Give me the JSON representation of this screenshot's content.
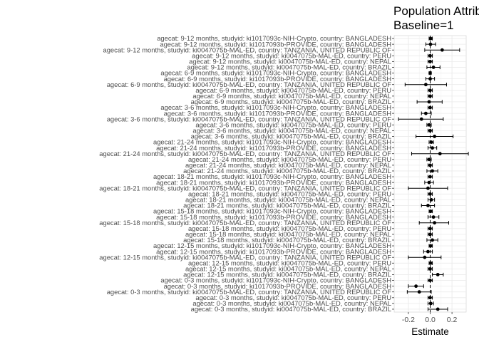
{
  "chart_data": {
    "type": "forest",
    "title": "Population Attributable",
    "subtitle": "Baseline=1",
    "xlabel": "Estimate",
    "ylabel": "",
    "xlim": [
      -0.33,
      0.33
    ],
    "xticks": [
      -0.2,
      0.0,
      0.2
    ],
    "xtick_labels": [
      "-0.2",
      "0.0",
      "0.2"
    ],
    "reference_line": 0,
    "rows": [
      {
        "label": "agecat: 9-12 months, studyid: ki1017093c-NIH-Crypto, country: BANGLADESH",
        "estimate": 0.005,
        "lower": -0.01,
        "upper": 0.02
      },
      {
        "label": "agecat: 9-12 months, studyid: ki1017093b-PROVIDE, country: BANGLADESH",
        "estimate": 0.003,
        "lower": -0.04,
        "upper": 0.05
      },
      {
        "label": "agecat: 9-12 months, studyid: ki0047075b-MAL-ED, country: TANZANIA, UNITED REPUBLIC OF",
        "estimate": 0.11,
        "lower": -0.05,
        "upper": 0.27
      },
      {
        "label": "agecat: 9-12 months, studyid: ki0047075b-MAL-ED, country: PERU",
        "estimate": 0.0,
        "lower": -0.02,
        "upper": 0.02
      },
      {
        "label": "agecat: 9-12 months, studyid: ki0047075b-MAL-ED, country: NEPAL",
        "estimate": 0.0,
        "lower": -0.02,
        "upper": 0.02
      },
      {
        "label": "agecat: 9-12 months, studyid: ki0047075b-MAL-ED, country: BRAZIL",
        "estimate": 0.03,
        "lower": -0.03,
        "upper": 0.09
      },
      {
        "label": "agecat: 6-9 months, studyid: ki1017093c-NIH-Crypto, country: BANGLADESH",
        "estimate": 0.0,
        "lower": -0.01,
        "upper": 0.01
      },
      {
        "label": "agecat: 6-9 months, studyid: ki1017093b-PROVIDE, country: BANGLADESH",
        "estimate": 0.0,
        "lower": -0.04,
        "upper": 0.04
      },
      {
        "label": "agecat: 6-9 months, studyid: ki0047075b-MAL-ED, country: TANZANIA, UNITED REPUBLIC OF",
        "estimate": -0.04,
        "lower": -0.23,
        "upper": 0.15
      },
      {
        "label": "agecat: 6-9 months, studyid: ki0047075b-MAL-ED, country: PERU",
        "estimate": 0.0,
        "lower": -0.02,
        "upper": 0.02
      },
      {
        "label": "agecat: 6-9 months, studyid: ki0047075b-MAL-ED, country: NEPAL",
        "estimate": 0.0,
        "lower": -0.02,
        "upper": 0.02
      },
      {
        "label": "agecat: 6-9 months, studyid: ki0047075b-MAL-ED, country: BRAZIL",
        "estimate": -0.01,
        "lower": -0.12,
        "upper": 0.11
      },
      {
        "label": "agecat: 3-6 months, studyid: ki1017093c-NIH-Crypto, country: BANGLADESH",
        "estimate": 0.0,
        "lower": -0.02,
        "upper": 0.02
      },
      {
        "label": "agecat: 3-6 months, studyid: ki1017093b-PROVIDE, country: BANGLADESH",
        "estimate": -0.04,
        "lower": -0.08,
        "upper": 0.01
      },
      {
        "label": "agecat: 3-6 months, studyid: ki0047075b-MAL-ED, country: TANZANIA, UNITED REPUBLIC OF",
        "estimate": -0.08,
        "lower": -0.29,
        "upper": 0.12
      },
      {
        "label": "agecat: 3-6 months, studyid: ki0047075b-MAL-ED, country: PERU",
        "estimate": -0.01,
        "lower": -0.03,
        "upper": 0.01
      },
      {
        "label": "agecat: 3-6 months, studyid: ki0047075b-MAL-ED, country: NEPAL",
        "estimate": 0.0,
        "lower": -0.02,
        "upper": 0.02
      },
      {
        "label": "agecat: 3-6 months, studyid: ki0047075b-MAL-ED, country: BRAZIL",
        "estimate": 0.04,
        "lower": -0.13,
        "upper": 0.21
      },
      {
        "label": "agecat: 21-24 months, studyid: ki1017093c-NIH-Crypto, country: BANGLADESH",
        "estimate": 0.01,
        "lower": -0.01,
        "upper": 0.03
      },
      {
        "label": "agecat: 21-24 months, studyid: ki1017093b-PROVIDE, country: BANGLADESH",
        "estimate": 0.02,
        "lower": -0.02,
        "upper": 0.06
      },
      {
        "label": "agecat: 21-24 months, studyid: ki0047075b-MAL-ED, country: TANZANIA, UNITED REPUBLIC OF",
        "estimate": 0.09,
        "lower": -0.17,
        "upper": 0.35
      },
      {
        "label": "agecat: 21-24 months, studyid: ki0047075b-MAL-ED, country: PERU",
        "estimate": -0.01,
        "lower": -0.03,
        "upper": 0.01
      },
      {
        "label": "agecat: 21-24 months, studyid: ki0047075b-MAL-ED, country: NEPAL",
        "estimate": 0.0,
        "lower": -0.02,
        "upper": 0.02
      },
      {
        "label": "agecat: 21-24 months, studyid: ki0047075b-MAL-ED, country: BRAZIL",
        "estimate": 0.02,
        "lower": -0.03,
        "upper": 0.07
      },
      {
        "label": "agecat: 18-21 months, studyid: ki1017093c-NIH-Crypto, country: BANGLADESH",
        "estimate": 0.0,
        "lower": -0.02,
        "upper": 0.02
      },
      {
        "label": "agecat: 18-21 months, studyid: ki1017093b-PROVIDE, country: BANGLADESH",
        "estimate": -0.01,
        "lower": -0.05,
        "upper": 0.03
      },
      {
        "label": "agecat: 18-21 months, studyid: ki0047075b-MAL-ED, country: TANZANIA, UNITED REPUBLIC OF",
        "estimate": -0.02,
        "lower": -0.2,
        "upper": 0.16
      },
      {
        "label": "agecat: 18-21 months, studyid: ki0047075b-MAL-ED, country: PERU",
        "estimate": 0.0,
        "lower": -0.02,
        "upper": 0.02
      },
      {
        "label": "agecat: 18-21 months, studyid: ki0047075b-MAL-ED, country: NEPAL",
        "estimate": 0.01,
        "lower": -0.02,
        "upper": 0.04
      },
      {
        "label": "agecat: 18-21 months, studyid: ki0047075b-MAL-ED, country: BRAZIL",
        "estimate": -0.02,
        "lower": -0.08,
        "upper": 0.04
      },
      {
        "label": "agecat: 15-18 months, studyid: ki1017093c-NIH-Crypto, country: BANGLADESH",
        "estimate": 0.005,
        "lower": -0.01,
        "upper": 0.02
      },
      {
        "label": "agecat: 15-18 months, studyid: ki1017093b-PROVIDE, country: BANGLADESH",
        "estimate": 0.03,
        "lower": -0.02,
        "upper": 0.08
      },
      {
        "label": "agecat: 15-18 months, studyid: ki0047075b-MAL-ED, country: TANZANIA, UNITED REPUBLIC OF",
        "estimate": 0.04,
        "lower": -0.1,
        "upper": 0.17
      },
      {
        "label": "agecat: 15-18 months, studyid: ki0047075b-MAL-ED, country: PERU",
        "estimate": 0.0,
        "lower": -0.02,
        "upper": 0.02
      },
      {
        "label": "agecat: 15-18 months, studyid: ki0047075b-MAL-ED, country: NEPAL",
        "estimate": 0.0,
        "lower": -0.02,
        "upper": 0.02
      },
      {
        "label": "agecat: 15-18 months, studyid: ki0047075b-MAL-ED, country: BRAZIL",
        "estimate": 0.02,
        "lower": -0.03,
        "upper": 0.07
      },
      {
        "label": "agecat: 12-15 months, studyid: ki1017093c-NIH-Crypto, country: BANGLADESH",
        "estimate": 0.005,
        "lower": -0.01,
        "upper": 0.02
      },
      {
        "label": "agecat: 12-15 months, studyid: ki1017093b-PROVIDE, country: BANGLADESH",
        "estimate": -0.02,
        "lower": -0.06,
        "upper": 0.02
      },
      {
        "label": "agecat: 12-15 months, studyid: ki0047075b-MAL-ED, country: TANZANIA, UNITED REPUBLIC OF",
        "estimate": -0.05,
        "lower": -0.2,
        "upper": 0.1
      },
      {
        "label": "agecat: 12-15 months, studyid: ki0047075b-MAL-ED, country: PERU",
        "estimate": 0.005,
        "lower": -0.01,
        "upper": 0.02
      },
      {
        "label": "agecat: 12-15 months, studyid: ki0047075b-MAL-ED, country: NEPAL",
        "estimate": 0.0,
        "lower": -0.02,
        "upper": 0.02
      },
      {
        "label": "agecat: 12-15 months, studyid: ki0047075b-MAL-ED, country: BRAZIL",
        "estimate": 0.07,
        "lower": 0.02,
        "upper": 0.12
      },
      {
        "label": "agecat: 0-3 months, studyid: ki1017093c-NIH-Crypto, country: BANGLADESH",
        "estimate": 0.0,
        "lower": -0.02,
        "upper": 0.02
      },
      {
        "label": "agecat: 0-3 months, studyid: ki1017093b-PROVIDE, country: BANGLADESH",
        "estimate": -0.13,
        "lower": -0.2,
        "upper": -0.06
      },
      {
        "label": "agecat: 0-3 months, studyid: ki0047075b-MAL-ED, country: TANZANIA, UNITED REPUBLIC OF",
        "estimate": -0.1,
        "lower": -0.21,
        "upper": 0.01
      },
      {
        "label": "agecat: 0-3 months, studyid: ki0047075b-MAL-ED, country: PERU",
        "estimate": 0.0,
        "lower": -0.02,
        "upper": 0.02
      },
      {
        "label": "agecat: 0-3 months, studyid: ki0047075b-MAL-ED, country: NEPAL",
        "estimate": 0.005,
        "lower": -0.02,
        "upper": 0.03
      },
      {
        "label": "agecat: 0-3 months, studyid: ki0047075b-MAL-ED, country: BRAZIL",
        "estimate": 0.07,
        "lower": -0.02,
        "upper": 0.16
      }
    ]
  }
}
